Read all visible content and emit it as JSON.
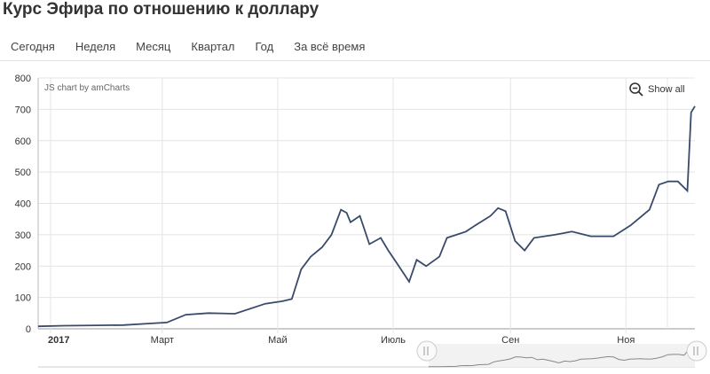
{
  "title": "Курс Эфира по отношению к доллару",
  "tabs": [
    "Сегодня",
    "Неделя",
    "Месяц",
    "Квартал",
    "Год",
    "За всё время"
  ],
  "chart_credit": "JS chart by amCharts",
  "show_all_label": "Show all",
  "colors": {
    "line": "#3a4a6b",
    "grid": "#e4e4e4",
    "scrollbar_line": "#888888"
  },
  "chart_data": {
    "type": "line",
    "title": "Курс Эфира по отношению к доллару",
    "xlabel": "",
    "ylabel": "",
    "ylim": [
      0,
      800
    ],
    "y_ticks": [
      0,
      100,
      200,
      300,
      400,
      500,
      600,
      700,
      800
    ],
    "x_tick_labels": [
      "2017",
      "Март",
      "Май",
      "Июль",
      "Сен",
      "Ноя"
    ],
    "grid": true,
    "series": [
      {
        "x": [
          "2017-01-01",
          "2017-01-15",
          "2017-02-01",
          "2017-02-15",
          "2017-03-01",
          "2017-03-10",
          "2017-03-20",
          "2017-04-01",
          "2017-04-15",
          "2017-05-01",
          "2017-05-10",
          "2017-05-15",
          "2017-05-20",
          "2017-05-25",
          "2017-05-31",
          "2017-06-05",
          "2017-06-10",
          "2017-06-13",
          "2017-06-15",
          "2017-06-20",
          "2017-06-25",
          "2017-07-01",
          "2017-07-05",
          "2017-07-10",
          "2017-07-16",
          "2017-07-20",
          "2017-07-25",
          "2017-08-01",
          "2017-08-05",
          "2017-08-10",
          "2017-08-15",
          "2017-08-20",
          "2017-08-28",
          "2017-09-01",
          "2017-09-05",
          "2017-09-10",
          "2017-09-15",
          "2017-09-20",
          "2017-10-01",
          "2017-10-10",
          "2017-10-20",
          "2017-11-01",
          "2017-11-10",
          "2017-11-20",
          "2017-11-25",
          "2017-11-30",
          "2017-12-05",
          "2017-12-10",
          "2017-12-12",
          "2017-12-14"
        ],
        "values": [
          8,
          10,
          11,
          12,
          17,
          20,
          45,
          50,
          48,
          80,
          88,
          95,
          190,
          230,
          260,
          300,
          380,
          370,
          340,
          360,
          270,
          290,
          250,
          205,
          150,
          220,
          200,
          230,
          290,
          300,
          310,
          330,
          360,
          385,
          375,
          280,
          250,
          290,
          300,
          310,
          295,
          295,
          330,
          380,
          460,
          470,
          470,
          440,
          690,
          710
        ]
      }
    ]
  },
  "navigator": {
    "type": "area",
    "values": [
      8,
      10,
      11,
      12,
      17,
      20,
      45,
      50,
      48,
      80,
      88,
      95,
      190,
      230,
      260,
      300,
      380,
      370,
      340,
      360,
      270,
      290,
      250,
      205,
      150,
      220,
      200,
      230,
      290,
      300,
      310,
      330,
      360,
      385,
      375,
      280,
      250,
      290,
      300,
      310,
      295,
      295,
      330,
      380,
      460,
      470,
      470,
      440,
      690,
      710
    ]
  }
}
